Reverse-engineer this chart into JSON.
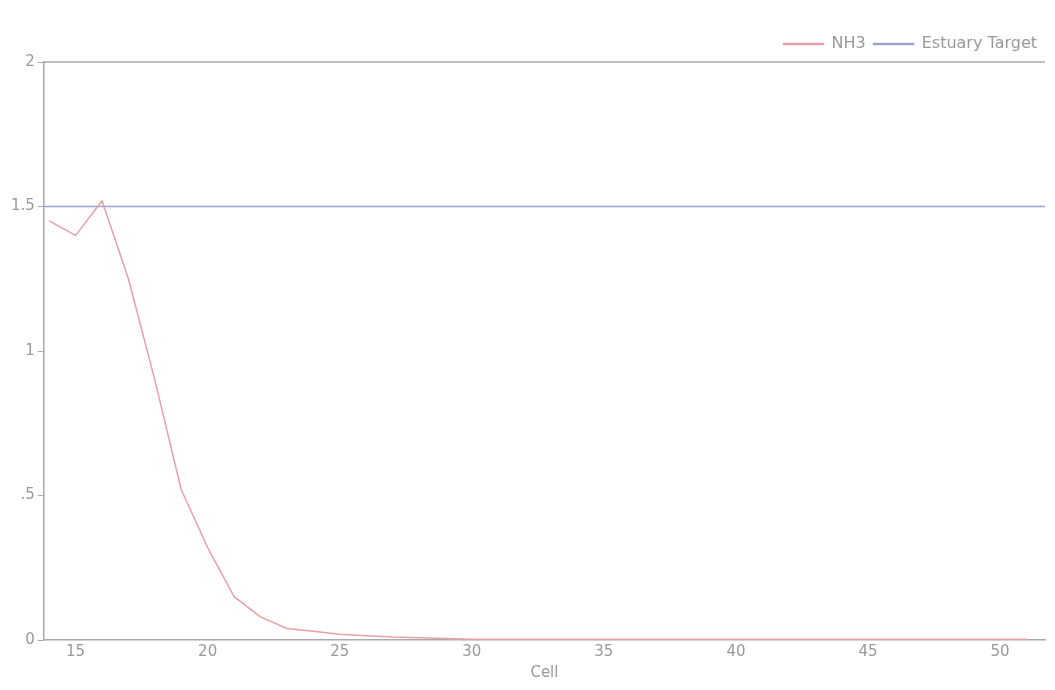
{
  "chart_data": {
    "type": "line",
    "xlabel": "Cell",
    "x": [
      14,
      15,
      16,
      17,
      18,
      19,
      20,
      21,
      22,
      23,
      24,
      25,
      26,
      27,
      28,
      29,
      30,
      31,
      32,
      33,
      34,
      35,
      36,
      37,
      38,
      39,
      40,
      41,
      42,
      43,
      44,
      45,
      46,
      47,
      48,
      49,
      50,
      51
    ],
    "series": [
      {
        "name": "NH3",
        "color": "#e8a0a8",
        "values": [
          1.45,
          1.4,
          1.52,
          1.25,
          0.9,
          0.52,
          0.32,
          0.15,
          0.08,
          0.04,
          0.03,
          0.02,
          0.015,
          0.01,
          0.008,
          0.005,
          0.003,
          0.003,
          0.003,
          0.003,
          0.003,
          0.003,
          0.003,
          0.003,
          0.003,
          0.003,
          0.003,
          0.003,
          0.003,
          0.003,
          0.003,
          0.003,
          0.003,
          0.003,
          0.003,
          0.003,
          0.003,
          0.003
        ]
      },
      {
        "name": "Estuary Target",
        "color": "#9aa4cc",
        "x": [
          13.8,
          51.7
        ],
        "values": [
          1.5,
          1.5
        ]
      }
    ],
    "xlim": [
      13.8,
      51.7
    ],
    "xticks": [
      15,
      20,
      25,
      30,
      35,
      40,
      45,
      50
    ],
    "ylim": [
      0,
      2
    ],
    "yticks": [
      0,
      {
        "value": 0.5,
        "label": ".5"
      },
      1,
      1.5,
      2
    ],
    "grid": false,
    "legend": "top right",
    "marker": "none",
    "line_style": "solid"
  }
}
